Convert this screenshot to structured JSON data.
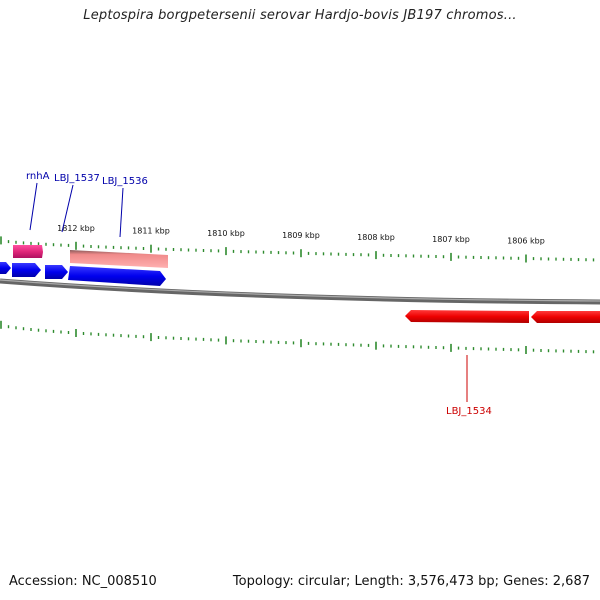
{
  "title": "Leptospira borgpetersenii serovar Hardjo-bovis JB197 chromos...",
  "footer": {
    "accession": "Accession: NC_008510",
    "summary": "Topology: circular; Length: 3,576,473 bp; Genes: 2,687"
  },
  "colors": {
    "backbone": "#777777",
    "tick": "#2e8b2e",
    "forward_gene": "#0000ee",
    "rrna_like": "#ee7777",
    "pink_gene": "#e0287a",
    "reverse_gene": "#ee0000",
    "label_blue": "#0000aa",
    "label_red": "#cc0000"
  },
  "scale": {
    "unit": "kbp",
    "major_ticks": [
      {
        "label": "1812 kbp",
        "kbp": 1812
      },
      {
        "label": "1811 kbp",
        "kbp": 1811
      },
      {
        "label": "1810 kbp",
        "kbp": 1810
      },
      {
        "label": "1809 kbp",
        "kbp": 1809
      },
      {
        "label": "1808 kbp",
        "kbp": 1808
      },
      {
        "label": "1807 kbp",
        "kbp": 1807
      },
      {
        "label": "1806 kbp",
        "kbp": 1806
      }
    ]
  },
  "genes": [
    {
      "label": "rnhA",
      "strand": "+",
      "color": "pink_gene"
    },
    {
      "label": "LBJ_1537",
      "strand": "+",
      "color": "forward_gene"
    },
    {
      "label": "LBJ_1536",
      "strand": "+",
      "color": "rrna_like"
    },
    {
      "label": "LBJ_1534",
      "strand": "-",
      "color": "reverse_gene"
    }
  ]
}
